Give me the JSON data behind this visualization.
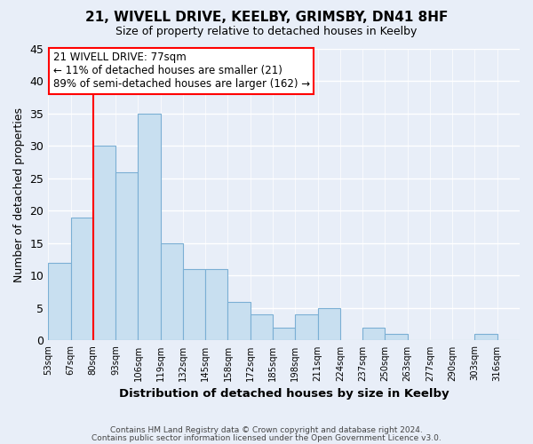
{
  "title": "21, WIVELL DRIVE, KEELBY, GRIMSBY, DN41 8HF",
  "subtitle": "Size of property relative to detached houses in Keelby",
  "xlabel": "Distribution of detached houses by size in Keelby",
  "ylabel": "Number of detached properties",
  "bar_color": "#c8dff0",
  "bar_edgecolor": "#7bafd4",
  "bins": [
    "53sqm",
    "67sqm",
    "80sqm",
    "93sqm",
    "106sqm",
    "119sqm",
    "132sqm",
    "145sqm",
    "158sqm",
    "172sqm",
    "185sqm",
    "198sqm",
    "211sqm",
    "224sqm",
    "237sqm",
    "250sqm",
    "263sqm",
    "277sqm",
    "290sqm",
    "303sqm",
    "316sqm"
  ],
  "values": [
    12,
    19,
    30,
    26,
    35,
    15,
    11,
    11,
    6,
    4,
    2,
    4,
    5,
    0,
    2,
    1,
    0,
    0,
    0,
    1,
    0
  ],
  "ylim": [
    0,
    45
  ],
  "yticks": [
    0,
    5,
    10,
    15,
    20,
    25,
    30,
    35,
    40,
    45
  ],
  "property_line_x": 2,
  "property_line_label": "21 WIVELL DRIVE: 77sqm",
  "annotation_line1": "← 11% of detached houses are smaller (21)",
  "annotation_line2": "89% of semi-detached houses are larger (162) →",
  "footer1": "Contains HM Land Registry data © Crown copyright and database right 2024.",
  "footer2": "Contains public sector information licensed under the Open Government Licence v3.0.",
  "background_color": "#e8eef8",
  "plot_bg_color": "#e8eef8",
  "grid_color": "#ffffff"
}
